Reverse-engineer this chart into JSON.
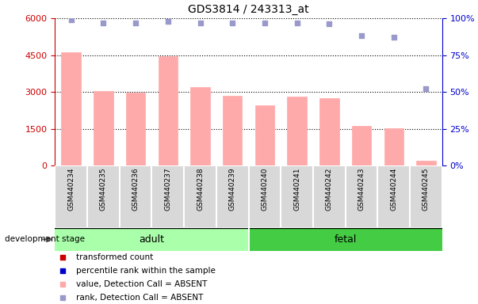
{
  "title": "GDS3814 / 243313_at",
  "samples": [
    "GSM440234",
    "GSM440235",
    "GSM440236",
    "GSM440237",
    "GSM440238",
    "GSM440239",
    "GSM440240",
    "GSM440241",
    "GSM440242",
    "GSM440243",
    "GSM440244",
    "GSM440245"
  ],
  "transformed_count": [
    4620,
    3050,
    2960,
    4450,
    3200,
    2860,
    2470,
    2820,
    2750,
    1620,
    1510,
    200
  ],
  "percentile_rank": [
    99,
    97,
    97,
    98,
    97,
    97,
    97,
    97,
    96,
    88,
    87,
    52
  ],
  "bar_color": "#ffaaaa",
  "dot_color": "#9999cc",
  "n_adult": 6,
  "n_fetal": 6,
  "adult_label": "adult",
  "fetal_label": "fetal",
  "adult_color": "#aaffaa",
  "fetal_color": "#44cc44",
  "left_ylim": [
    0,
    6000
  ],
  "right_ylim": [
    0,
    100
  ],
  "left_yticks": [
    0,
    1500,
    3000,
    4500,
    6000
  ],
  "right_yticks": [
    0,
    25,
    50,
    75,
    100
  ],
  "left_yticklabels": [
    "0",
    "1500",
    "3000",
    "4500",
    "6000"
  ],
  "right_yticklabels": [
    "0%",
    "25%",
    "50%",
    "75%",
    "100%"
  ],
  "left_tick_color": "#cc0000",
  "right_tick_color": "#0000cc",
  "bg_color": "#d8d8d8",
  "dev_stage_label": "development stage",
  "legend_labels": [
    "transformed count",
    "percentile rank within the sample",
    "value, Detection Call = ABSENT",
    "rank, Detection Call = ABSENT"
  ],
  "legend_colors": [
    "#cc0000",
    "#0000cc",
    "#ffaaaa",
    "#9999cc"
  ]
}
